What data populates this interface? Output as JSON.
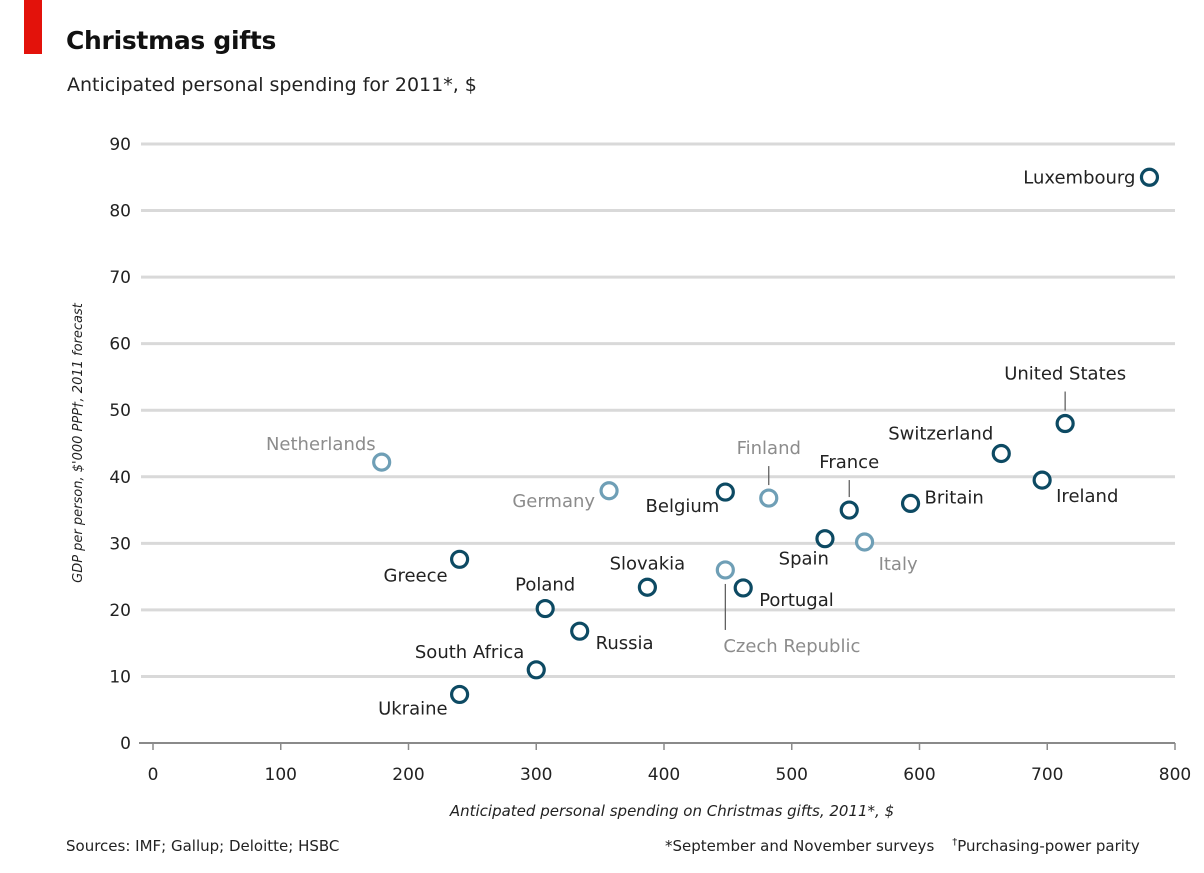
{
  "header": {
    "title": "Christmas gifts",
    "subtitle": "Anticipated personal spending for 2011*, $"
  },
  "footer": {
    "sources": "Sources: IMF; Gallup; Deloitte; HSBC",
    "note_star": "*September and November surveys",
    "note_dagger_mark": "†",
    "note_dagger": "Purchasing-power parity"
  },
  "colors": {
    "accent_red": "#e3120b",
    "marker_dark": "#0d4a63",
    "marker_light": "#6f9fb6",
    "gridline": "#d9d9d9",
    "label_dark": "#222222",
    "label_light": "#8c8c8c"
  },
  "chart_data": {
    "type": "scatter",
    "xlabel": "Anticipated personal spending on Christmas gifts, 2011*, $",
    "ylabel": "GDP per person, $'000 PPP†, 2011 forecast",
    "xlim": [
      0,
      800
    ],
    "ylim": [
      0,
      90
    ],
    "x_ticks": [
      "0",
      "100",
      "200",
      "300",
      "400",
      "500",
      "600",
      "700",
      "800"
    ],
    "y_ticks": [
      "0",
      "10",
      "20",
      "30",
      "40",
      "50",
      "60",
      "70",
      "80",
      "90"
    ],
    "grid": "horizontal",
    "points": [
      {
        "name": "Luxembourg",
        "x": 780,
        "y": 85,
        "highlight": "dark"
      },
      {
        "name": "United States",
        "x": 714,
        "y": 48,
        "highlight": "dark"
      },
      {
        "name": "Switzerland",
        "x": 664,
        "y": 43.5,
        "highlight": "dark"
      },
      {
        "name": "Ireland",
        "x": 696,
        "y": 39.5,
        "highlight": "dark"
      },
      {
        "name": "Britain",
        "x": 593,
        "y": 36,
        "highlight": "dark"
      },
      {
        "name": "France",
        "x": 545,
        "y": 35,
        "highlight": "dark"
      },
      {
        "name": "Finland",
        "x": 482,
        "y": 36.8,
        "highlight": "light"
      },
      {
        "name": "Belgium",
        "x": 448,
        "y": 37.7,
        "highlight": "dark"
      },
      {
        "name": "Germany",
        "x": 357,
        "y": 37.9,
        "highlight": "light"
      },
      {
        "name": "Netherlands",
        "x": 179,
        "y": 42.2,
        "highlight": "light"
      },
      {
        "name": "Spain",
        "x": 526,
        "y": 30.7,
        "highlight": "dark"
      },
      {
        "name": "Italy",
        "x": 557,
        "y": 30.2,
        "highlight": "light"
      },
      {
        "name": "Greece",
        "x": 240,
        "y": 27.6,
        "highlight": "dark"
      },
      {
        "name": "Czech Republic",
        "x": 448,
        "y": 26,
        "highlight": "light"
      },
      {
        "name": "Portugal",
        "x": 462,
        "y": 23.3,
        "highlight": "dark"
      },
      {
        "name": "Slovakia",
        "x": 387,
        "y": 23.4,
        "highlight": "dark"
      },
      {
        "name": "Poland",
        "x": 307,
        "y": 20.2,
        "highlight": "dark"
      },
      {
        "name": "Russia",
        "x": 334,
        "y": 16.8,
        "highlight": "dark"
      },
      {
        "name": "South Africa",
        "x": 300,
        "y": 11,
        "highlight": "dark"
      },
      {
        "name": "Ukraine",
        "x": 240,
        "y": 7.3,
        "highlight": "dark"
      }
    ]
  }
}
